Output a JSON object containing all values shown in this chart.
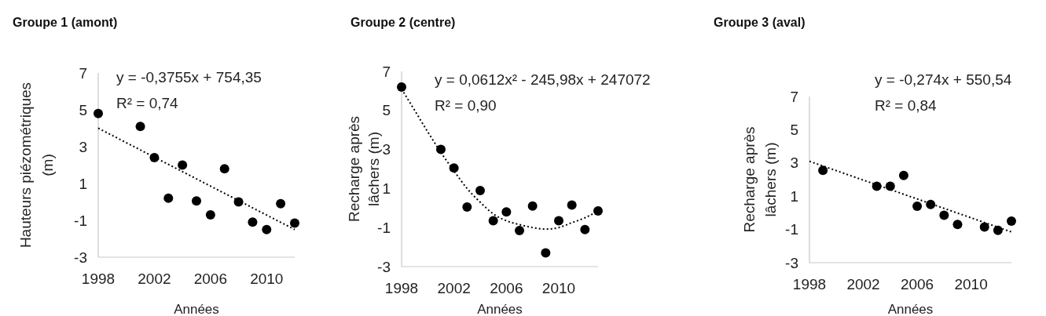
{
  "chart_data": [
    {
      "type": "scatter",
      "title": "Groupe 1 (amont)",
      "xlabel": "Années",
      "ylabel": "Hauteurs piézométriques\n(m)",
      "xlim": [
        1998,
        2012
      ],
      "xticks": [
        1998,
        2002,
        2006,
        2010
      ],
      "ylim": [
        -3,
        7
      ],
      "yticks": [
        -3,
        -1,
        1,
        3,
        5,
        7
      ],
      "marker": "circle",
      "annotations": [
        "y = -0,3755x + 754,35",
        "R² = 0,74"
      ],
      "series": [
        {
          "color": "#000000",
          "x": [
            1998,
            2001,
            2002,
            2003,
            2004,
            2005,
            2006,
            2007,
            2008,
            2009,
            2010,
            2011,
            2012
          ],
          "values": [
            4.8,
            4.1,
            2.4,
            0.2,
            2.0,
            0.05,
            -0.7,
            1.8,
            0.0,
            -1.1,
            -1.5,
            -0.1,
            -1.15
          ]
        },
        {
          "type": "line",
          "color": "#000000",
          "line_style": "dotted",
          "marker": "none",
          "x": [
            1998,
            2012
          ],
          "values": [
            4.0,
            -1.5
          ]
        }
      ]
    },
    {
      "type": "scatter",
      "title": "Groupe 2 (centre)",
      "xlabel": "Années",
      "ylabel": "Recharge après\nlâchers (m)",
      "xlim": [
        1998,
        2013
      ],
      "xticks": [
        1998,
        2002,
        2006,
        2010
      ],
      "ylim": [
        -3,
        7
      ],
      "yticks": [
        -3,
        -1,
        1,
        3,
        5,
        7
      ],
      "marker": "circle",
      "annotations": [
        "y = 0,0612x² - 245,98x + 247072",
        "R² = 0,90"
      ],
      "series": [
        {
          "color": "#000000",
          "x": [
            1998,
            2001,
            2002,
            2003,
            2004,
            2005,
            2006,
            2007,
            2008,
            2009,
            2010,
            2011,
            2012,
            2013
          ],
          "values": [
            6.2,
            3.0,
            2.05,
            0.05,
            0.9,
            -0.65,
            -0.2,
            -1.15,
            0.1,
            -2.3,
            -0.65,
            0.15,
            -1.1,
            -0.15
          ]
        },
        {
          "type": "line",
          "color": "#000000",
          "line_style": "dotted",
          "marker": "none",
          "x": [
            1998,
            1999,
            2000,
            2001,
            2002,
            2003,
            2004,
            2005,
            2006,
            2007,
            2008,
            2009,
            2010,
            2011,
            2012,
            2013
          ],
          "values": [
            6.1,
            5.0,
            3.9,
            2.85,
            1.9,
            1.0,
            0.3,
            -0.3,
            -0.65,
            -0.85,
            -1.0,
            -1.08,
            -1.0,
            -0.75,
            -0.5,
            -0.15
          ]
        }
      ]
    },
    {
      "type": "scatter",
      "title": "Groupe 3 (aval)",
      "xlabel": "Années",
      "ylabel": "Recharge après\nlâchers (m)",
      "xlim": [
        1998,
        2013
      ],
      "xticks": [
        1998,
        2002,
        2006,
        2010
      ],
      "ylim": [
        -3,
        7
      ],
      "yticks": [
        -3,
        -1,
        1,
        3,
        5,
        7
      ],
      "marker": "circle",
      "annotations": [
        "y = -0,274x + 550,54",
        "R² = 0,84"
      ],
      "series": [
        {
          "color": "#000000",
          "x": [
            1999,
            2003,
            2004,
            2005,
            2006,
            2007,
            2008,
            2009,
            2011,
            2012,
            2013
          ],
          "values": [
            2.55,
            1.6,
            1.6,
            2.25,
            0.4,
            0.5,
            -0.15,
            -0.7,
            -0.85,
            -1.05,
            -0.5
          ]
        },
        {
          "type": "line",
          "color": "#000000",
          "line_style": "dotted",
          "marker": "none",
          "x": [
            1998,
            2013
          ],
          "values": [
            3.1,
            -1.15
          ]
        }
      ]
    }
  ]
}
